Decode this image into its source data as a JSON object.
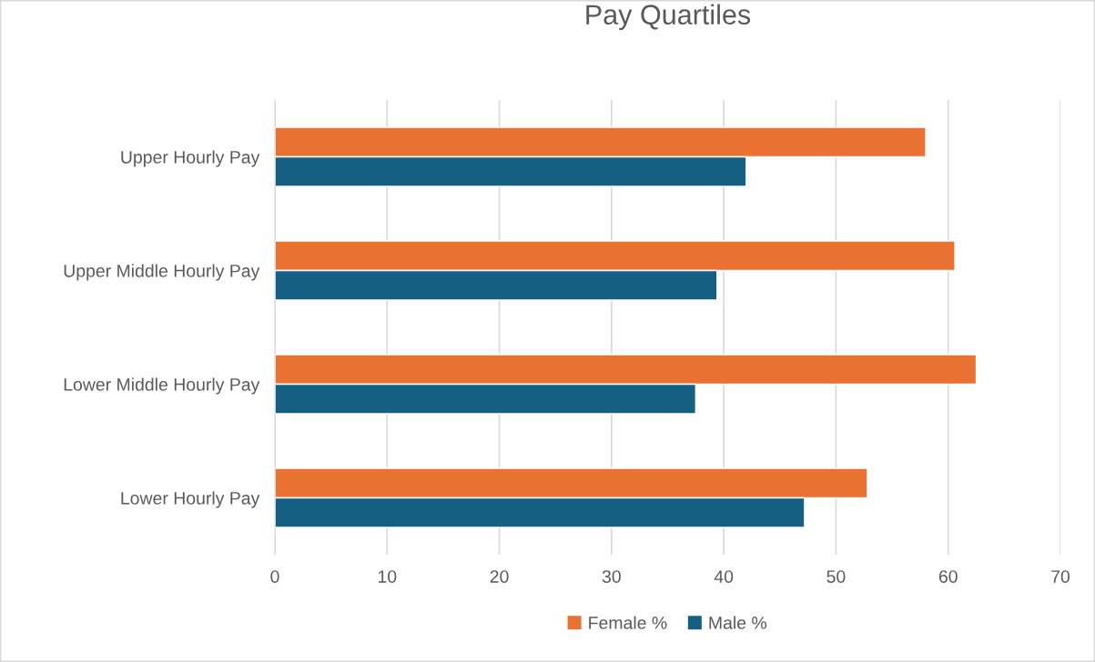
{
  "chart_data": {
    "type": "bar",
    "orientation": "horizontal",
    "title": "Pay Quartiles",
    "categories": [
      "Upper Hourly Pay",
      "Upper Middle Hourly Pay",
      "Lower Middle Hourly Pay",
      "Lower Hourly Pay"
    ],
    "series": [
      {
        "name": "Female %",
        "color": "#e97132",
        "values": [
          58.0,
          60.6,
          62.5,
          52.8
        ]
      },
      {
        "name": "Male %",
        "color": "#156082",
        "values": [
          42.0,
          39.4,
          37.5,
          47.2
        ]
      }
    ],
    "xlim": [
      0,
      70
    ],
    "xticks": [
      0,
      10,
      20,
      30,
      40,
      50,
      60,
      70
    ],
    "grid": "x",
    "legend": "bottom"
  }
}
